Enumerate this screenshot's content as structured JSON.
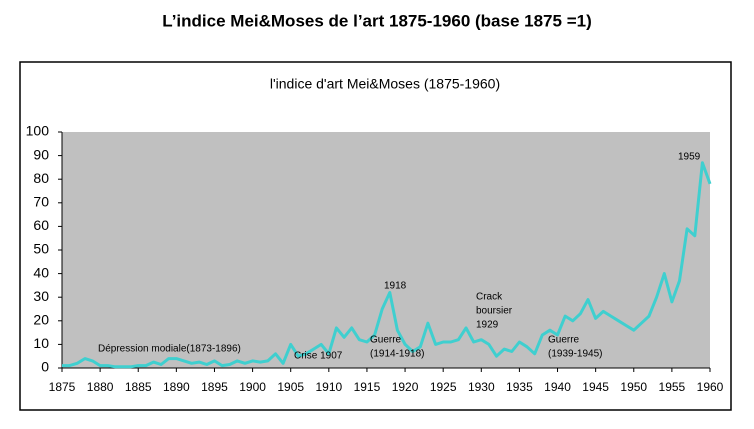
{
  "chart_data": {
    "type": "line",
    "title": "L’indice Mei&Moses de l’art 1875-1960 (base 1875 =1)",
    "subtitle": "l'indice d'art Mei&Moses (1875-1960)",
    "x": [
      1875,
      1876,
      1877,
      1878,
      1879,
      1880,
      1881,
      1882,
      1883,
      1884,
      1885,
      1886,
      1887,
      1888,
      1889,
      1890,
      1891,
      1892,
      1893,
      1894,
      1895,
      1896,
      1897,
      1898,
      1899,
      1900,
      1901,
      1902,
      1903,
      1904,
      1905,
      1906,
      1907,
      1908,
      1909,
      1910,
      1911,
      1912,
      1913,
      1914,
      1915,
      1916,
      1917,
      1918,
      1919,
      1920,
      1921,
      1922,
      1923,
      1924,
      1925,
      1926,
      1927,
      1928,
      1929,
      1930,
      1931,
      1932,
      1933,
      1934,
      1935,
      1936,
      1937,
      1938,
      1939,
      1940,
      1941,
      1942,
      1943,
      1944,
      1945,
      1946,
      1947,
      1948,
      1949,
      1950,
      1951,
      1952,
      1953,
      1954,
      1955,
      1956,
      1957,
      1958,
      1959,
      1960
    ],
    "series": [
      {
        "name": "Mei&Moses",
        "color": "#3fcfcf",
        "values": [
          1,
          1,
          2,
          4,
          3,
          1,
          1,
          0.5,
          0.5,
          0.5,
          1,
          1,
          2.5,
          1.5,
          4,
          4,
          3,
          2,
          2.5,
          1.5,
          3,
          1,
          1.5,
          3,
          2,
          3,
          2.5,
          3,
          6,
          2,
          10,
          5,
          6,
          8,
          10,
          6,
          17,
          13,
          17,
          12,
          11,
          14,
          25,
          32,
          16,
          10,
          7,
          9,
          19,
          10,
          11,
          11,
          12,
          17,
          11,
          12,
          10,
          5,
          8,
          7,
          11,
          9,
          6,
          14,
          16,
          14,
          22,
          20,
          23,
          29,
          21,
          24,
          22,
          20,
          18,
          16,
          19,
          22,
          30,
          40,
          28,
          37,
          59,
          56,
          87,
          78
        ]
      }
    ],
    "xlim": [
      1875,
      1960
    ],
    "xticks": [
      1875,
      1880,
      1885,
      1890,
      1895,
      1900,
      1905,
      1910,
      1915,
      1920,
      1925,
      1930,
      1935,
      1940,
      1945,
      1950,
      1955,
      1960
    ],
    "ylim": [
      0,
      100
    ],
    "yticks": [
      0,
      10,
      20,
      30,
      40,
      50,
      60,
      70,
      80,
      90,
      100
    ],
    "annotations": [
      "Dépression modiale(1873-1896)",
      "Crise 1907",
      "1918",
      "Guerre",
      "(1914-1918)",
      "Crack",
      "boursier",
      "1929",
      "Guerre",
      "(1939-1945)",
      "1959"
    ]
  }
}
